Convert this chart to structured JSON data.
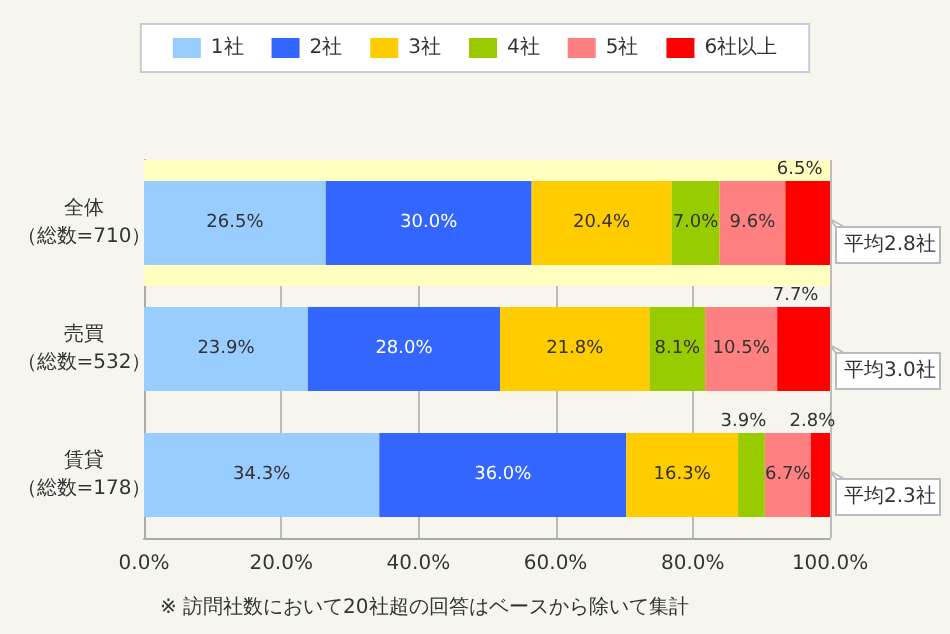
{
  "chart_data": {
    "type": "bar",
    "orientation": "horizontal",
    "stacked": true,
    "categories": [
      "全体（総数=710）",
      "売買（総数=532）",
      "賃貸（総数=178）"
    ],
    "series": [
      {
        "name": "1社",
        "color": "#99ccff",
        "values": [
          26.5,
          23.9,
          34.3
        ],
        "value_labels": [
          "26.5%",
          "23.9%",
          "34.3%"
        ]
      },
      {
        "name": "2社",
        "color": "#3366ff",
        "values": [
          30.0,
          28.0,
          36.0
        ],
        "value_labels": [
          "30.0%",
          "28.0%",
          "36.0%"
        ]
      },
      {
        "name": "3社",
        "color": "#ffcc00",
        "values": [
          20.4,
          21.8,
          16.3
        ],
        "value_labels": [
          "20.4%",
          "21.8%",
          "16.3%"
        ]
      },
      {
        "name": "4社",
        "color": "#99cc00",
        "values": [
          7.0,
          8.1,
          3.9
        ],
        "value_labels": [
          "7.0%",
          "8.1%",
          "3.9%"
        ]
      },
      {
        "name": "5社",
        "color": "#ff8080",
        "values": [
          9.6,
          10.5,
          6.7
        ],
        "value_labels": [
          "9.6%",
          "10.5%",
          "6.7%"
        ]
      },
      {
        "name": "6社以上",
        "color": "#ff0000",
        "values": [
          6.5,
          7.7,
          2.8
        ],
        "value_labels": [
          "6.5%",
          "7.7%",
          "2.8%"
        ]
      }
    ],
    "xlim": [
      0,
      100
    ],
    "xticks": [
      {
        "value": 0,
        "label": "0.0%"
      },
      {
        "value": 20,
        "label": "20.0%"
      },
      {
        "value": 40,
        "label": "40.0%"
      },
      {
        "value": 60,
        "label": "60.0%"
      },
      {
        "value": 80,
        "label": "80.0%"
      },
      {
        "value": 100,
        "label": "100.0%"
      }
    ],
    "grid": "x",
    "legend": "top",
    "bands": [
      {
        "axis": "y",
        "from": "全体（総数=710）",
        "to": "全体（総数=710）",
        "color": "#ffffc0"
      }
    ],
    "annotations": [
      "平均2.8社",
      "平均3.0社",
      "平均2.3社",
      "※ 訪問社数において20社超の回答はベースから除いて集計"
    ]
  }
}
